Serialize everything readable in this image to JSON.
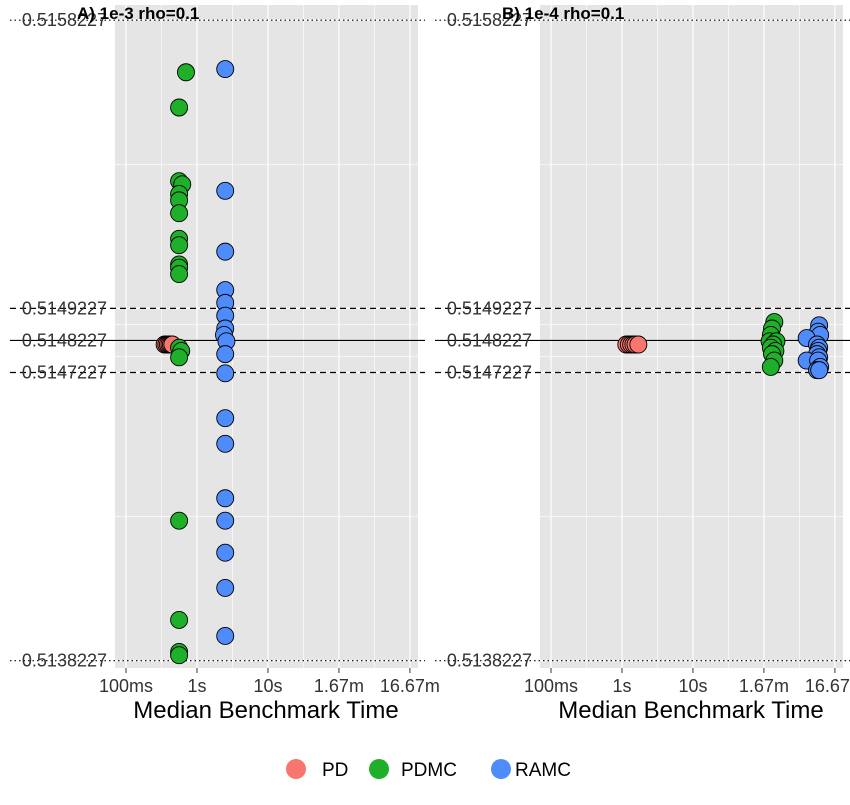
{
  "colors": {
    "PD": "#F8766D",
    "PDMC": "#1FB02A",
    "RAMC": "#4F8CFB",
    "panel_bg": "#E5E5E5",
    "grid": "#FFFFFF"
  },
  "legend": {
    "entries": [
      "PD",
      "PDMC",
      "RAMC"
    ],
    "placement": "bottom"
  },
  "chart_data": [
    {
      "type": "scatter",
      "title": "A) 1e-3 rho=0.1",
      "xlabel": "Median Benchmark Time",
      "ylabel": "",
      "x_scale": "log",
      "xlim_s": [
        0.07,
        1300
      ],
      "ylim": [
        0.5138,
        0.51587
      ],
      "x_ticks": [
        {
          "value_s": 0.1,
          "label": "100ms"
        },
        {
          "value_s": 1,
          "label": "1s"
        },
        {
          "value_s": 10,
          "label": "10s"
        },
        {
          "value_s": 100,
          "label": "1.67m"
        },
        {
          "value_s": 1000,
          "label": "16.67m"
        }
      ],
      "y_ticks": [
        {
          "value": 0.5158227,
          "label": "0.5158227"
        },
        {
          "value": 0.5149227,
          "label": "0.5149227"
        },
        {
          "value": 0.5148227,
          "label": "0.5148227"
        },
        {
          "value": 0.5147227,
          "label": "0.5147227"
        },
        {
          "value": 0.5138227,
          "label": "0.5138227"
        }
      ],
      "reference_lines": [
        {
          "value": 0.5158227,
          "style": "dotted"
        },
        {
          "value": 0.5149227,
          "style": "dashed"
        },
        {
          "value": 0.5148227,
          "style": "solid"
        },
        {
          "value": 0.5147227,
          "style": "dashed"
        },
        {
          "value": 0.5138227,
          "style": "dotted"
        }
      ],
      "grid": true,
      "series": [
        {
          "name": "PD",
          "points": [
            [
              0.35,
              0.51481
            ],
            [
              0.37,
              0.51481
            ],
            [
              0.39,
              0.51481
            ],
            [
              0.41,
              0.51481
            ],
            [
              0.43,
              0.51481
            ],
            [
              0.45,
              0.51481
            ]
          ]
        },
        {
          "name": "PDMC",
          "points": [
            [
              0.7,
              0.51566
            ],
            [
              0.56,
              0.51555
            ],
            [
              0.56,
              0.51532
            ],
            [
              0.62,
              0.51531
            ],
            [
              0.56,
              0.51528
            ],
            [
              0.56,
              0.51526
            ],
            [
              0.56,
              0.51522
            ],
            [
              0.56,
              0.51514
            ],
            [
              0.56,
              0.51512
            ],
            [
              0.56,
              0.51506
            ],
            [
              0.56,
              0.51505
            ],
            [
              0.56,
              0.51503
            ],
            [
              0.56,
              0.5148
            ],
            [
              0.6,
              0.51479
            ],
            [
              0.56,
              0.51477
            ],
            [
              0.56,
              0.51426
            ],
            [
              0.56,
              0.51395
            ],
            [
              0.56,
              0.51385
            ],
            [
              0.56,
              0.51384
            ]
          ]
        },
        {
          "name": "RAMC",
          "points": [
            [
              2.5,
              0.51567
            ],
            [
              2.5,
              0.51529
            ],
            [
              2.5,
              0.5151
            ],
            [
              2.5,
              0.51498
            ],
            [
              2.5,
              0.51494
            ],
            [
              2.5,
              0.5149
            ],
            [
              2.5,
              0.51486
            ],
            [
              2.4,
              0.51484
            ],
            [
              2.6,
              0.51482
            ],
            [
              2.5,
              0.51478
            ],
            [
              2.5,
              0.51472
            ],
            [
              2.5,
              0.51458
            ],
            [
              2.5,
              0.5145
            ],
            [
              2.5,
              0.51433
            ],
            [
              2.5,
              0.51426
            ],
            [
              2.5,
              0.51416
            ],
            [
              2.5,
              0.51405
            ],
            [
              2.5,
              0.5139
            ]
          ]
        }
      ]
    },
    {
      "type": "scatter",
      "title": "B) 1e-4 rho=0.1",
      "xlabel": "Median Benchmark Time",
      "ylabel": "",
      "x_scale": "log",
      "xlim_s": [
        0.07,
        1300
      ],
      "ylim": [
        0.5138,
        0.51587
      ],
      "x_ticks": [
        {
          "value_s": 0.1,
          "label": "100ms"
        },
        {
          "value_s": 1,
          "label": "1s"
        },
        {
          "value_s": 10,
          "label": "10s"
        },
        {
          "value_s": 100,
          "label": "1.67m"
        },
        {
          "value_s": 1000,
          "label": "16.67m"
        }
      ],
      "y_ticks": [
        {
          "value": 0.5158227,
          "label": "0.5158227"
        },
        {
          "value": 0.5149227,
          "label": "0.5149227"
        },
        {
          "value": 0.5148227,
          "label": "0.5148227"
        },
        {
          "value": 0.5147227,
          "label": "0.5147227"
        },
        {
          "value": 0.5138227,
          "label": "0.5138227"
        }
      ],
      "reference_lines": [
        {
          "value": 0.5158227,
          "style": "dotted"
        },
        {
          "value": 0.5149227,
          "style": "dashed"
        },
        {
          "value": 0.5148227,
          "style": "solid"
        },
        {
          "value": 0.5147227,
          "style": "dashed"
        },
        {
          "value": 0.5138227,
          "style": "dotted"
        }
      ],
      "grid": true,
      "series": [
        {
          "name": "PD",
          "points": [
            [
              1.15,
              0.51481
            ],
            [
              1.25,
              0.51481
            ],
            [
              1.35,
              0.51481
            ],
            [
              1.45,
              0.51481
            ],
            [
              1.55,
              0.51481
            ],
            [
              1.7,
              0.51481
            ]
          ]
        },
        {
          "name": "PDMC",
          "points": [
            [
              140,
              0.51488
            ],
            [
              130,
              0.51486
            ],
            [
              125,
              0.51484
            ],
            [
              120,
              0.51482
            ],
            [
              150,
              0.51482
            ],
            [
              135,
              0.51481
            ],
            [
              125,
              0.5148
            ],
            [
              145,
              0.51479
            ],
            [
              130,
              0.51478
            ],
            [
              140,
              0.51476
            ],
            [
              125,
              0.51474
            ]
          ]
        },
        {
          "name": "RAMC",
          "points": [
            [
              600,
              0.51487
            ],
            [
              580,
              0.51485
            ],
            [
              620,
              0.51484
            ],
            [
              400,
              0.51483
            ],
            [
              560,
              0.51481
            ],
            [
              600,
              0.5148
            ],
            [
              580,
              0.51479
            ],
            [
              560,
              0.51478
            ],
            [
              600,
              0.51477
            ],
            [
              400,
              0.51476
            ],
            [
              580,
              0.51476
            ],
            [
              620,
              0.51474
            ],
            [
              560,
              0.51473
            ],
            [
              600,
              0.51473
            ]
          ]
        }
      ]
    }
  ]
}
